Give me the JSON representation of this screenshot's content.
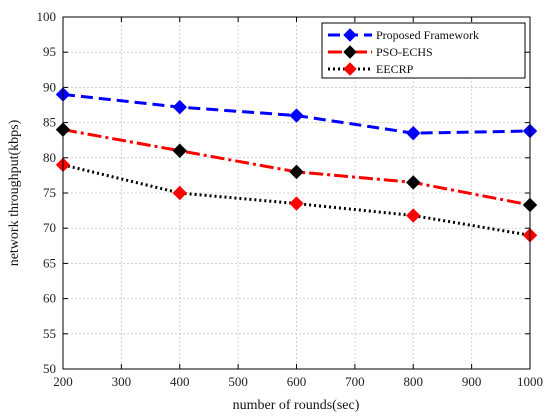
{
  "chart_data": {
    "type": "line",
    "xlabel": "number of rounds(sec)",
    "ylabel": "network throughput(kbps)",
    "xlim": [
      200,
      1000
    ],
    "ylim": [
      50,
      100
    ],
    "xticks": [
      200,
      300,
      400,
      500,
      600,
      700,
      800,
      900,
      1000
    ],
    "yticks": [
      50,
      55,
      60,
      65,
      70,
      75,
      80,
      85,
      90,
      95,
      100
    ],
    "grid": true,
    "legend_position": "top-right",
    "x": [
      200,
      400,
      600,
      800,
      1000
    ],
    "series": [
      {
        "name": "Proposed Framework",
        "values": [
          89,
          87.2,
          86,
          83.5,
          83.8
        ],
        "color": "#0000ff",
        "marker_color": "#0000ff",
        "dash": "12 6"
      },
      {
        "name": "PSO-ECHS",
        "values": [
          84,
          81,
          78,
          76.5,
          73.3
        ],
        "color": "#ff0000",
        "marker_color": "#000000",
        "dash": "14 4 3 4"
      },
      {
        "name": "EECRP",
        "values": [
          79,
          75,
          73.5,
          71.8,
          69
        ],
        "color": "#000000",
        "marker_color": "#ff0000",
        "dash": "2 3"
      }
    ]
  }
}
